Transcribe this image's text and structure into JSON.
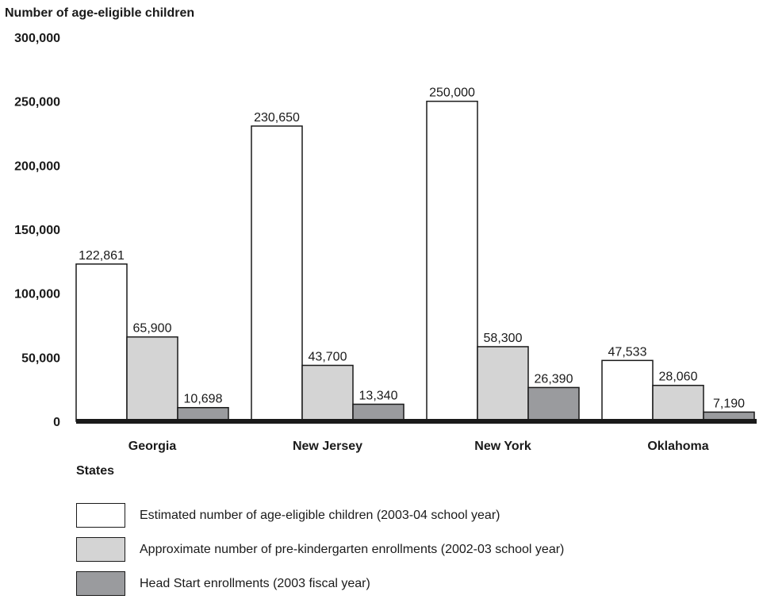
{
  "chart_data": {
    "type": "bar",
    "title": "",
    "ylabel": "Number of age-eligible children",
    "xlabel": "States",
    "ylim": [
      0,
      300000
    ],
    "yticks": [
      "0",
      "50,000",
      "100,000",
      "150,000",
      "200,000",
      "250,000",
      "300,000"
    ],
    "yticks_values": [
      0,
      50000,
      100000,
      150000,
      200000,
      250000,
      300000
    ],
    "categories": [
      "Georgia",
      "New Jersey",
      "New York",
      "Oklahoma"
    ],
    "grid": false,
    "legend_position": "bottom",
    "series": [
      {
        "name": "Estimated number of age-eligible children (2003-04 school year)",
        "values": [
          122861,
          230650,
          250000,
          47533
        ],
        "labels": [
          "122,861",
          "230,650",
          "250,000",
          "47,533"
        ],
        "color": "#ffffff"
      },
      {
        "name": "Approximate number of pre-kindergarten enrollments (2002-03 school year)",
        "values": [
          65900,
          43700,
          58300,
          28060
        ],
        "labels": [
          "65,900",
          "43,700",
          "58,300",
          "28,060"
        ],
        "color": "#d4d4d4"
      },
      {
        "name": "Head Start enrollments (2003 fiscal year)",
        "values": [
          10698,
          13340,
          26390,
          7190
        ],
        "labels": [
          "10,698",
          "13,340",
          "26,390",
          "7,190"
        ],
        "color": "#9a9b9e"
      }
    ]
  }
}
